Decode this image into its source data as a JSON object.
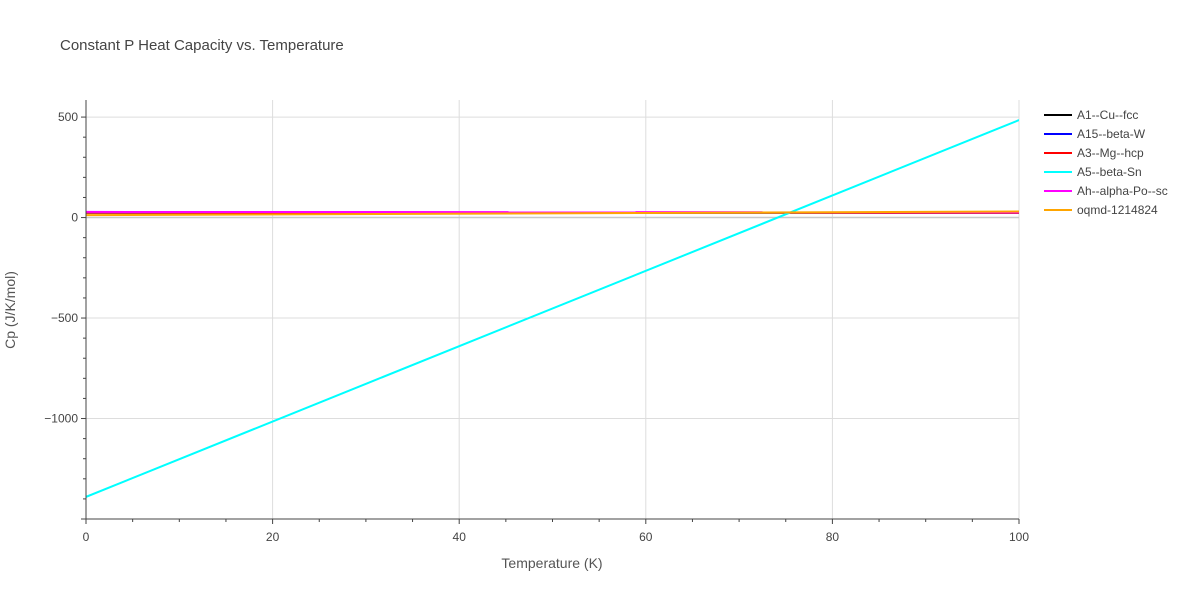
{
  "chart_data": {
    "type": "line",
    "title": "Constant P Heat Capacity vs. Temperature",
    "xlabel": "Temperature (K)",
    "ylabel": "Cp (J/K/mol)",
    "xlim": [
      0,
      100
    ],
    "ylim": [
      -1500,
      585
    ],
    "x_ticks": [
      0,
      20,
      40,
      60,
      80,
      100
    ],
    "x_tick_labels": [
      "0",
      "20",
      "40",
      "60",
      "80",
      "100"
    ],
    "y_ticks": [
      -1000,
      -500,
      0,
      500
    ],
    "y_tick_labels": [
      "−1000",
      "−500",
      "0",
      "500"
    ],
    "grid": true,
    "legend_position": "top-right",
    "series": [
      {
        "name": "A1--Cu--fcc",
        "color": "#000000",
        "x": [
          0,
          100
        ],
        "y": [
          24,
          24
        ]
      },
      {
        "name": "A15--beta-W",
        "color": "#0000ff",
        "x": [
          0,
          100
        ],
        "y": [
          25,
          25
        ]
      },
      {
        "name": "A3--Mg--hcp",
        "color": "#ff0000",
        "x": [
          0,
          100
        ],
        "y": [
          25,
          24
        ]
      },
      {
        "name": "A5--beta-Sn",
        "color": "#00ffff",
        "x": [
          0,
          100
        ],
        "y": [
          -1390,
          485
        ]
      },
      {
        "name": "Ah--alpha-Po--sc",
        "color": "#ff00ff",
        "x": [
          0,
          100
        ],
        "y": [
          28,
          26
        ]
      },
      {
        "name": "oqmd-1214824",
        "color": "#ffa500",
        "x": [
          0,
          100
        ],
        "y": [
          12,
          30
        ]
      }
    ]
  }
}
